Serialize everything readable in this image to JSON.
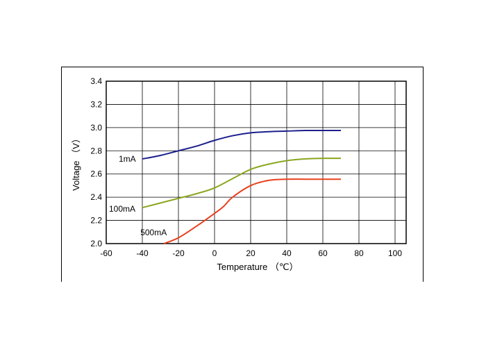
{
  "chart_data": {
    "type": "line",
    "title": "",
    "xlabel": "Temperature （℃）",
    "ylabel": "Voltage （V）",
    "xlim": [
      -60,
      100
    ],
    "ylim": [
      2.0,
      3.4
    ],
    "x_ticks": [
      "-60",
      "-40",
      "-20",
      "0",
      "20",
      "40",
      "60",
      "80",
      "100"
    ],
    "y_ticks": [
      "2.0",
      "2.2",
      "2.4",
      "2.6",
      "2.8",
      "3.0",
      "3.2",
      "3.4"
    ],
    "grid": true,
    "series": [
      {
        "name": "1mA",
        "color": "#1a1f8c",
        "points": [
          [
            -40,
            2.73
          ],
          [
            -30,
            2.76
          ],
          [
            -20,
            2.8
          ],
          [
            -10,
            2.84
          ],
          [
            0,
            2.89
          ],
          [
            10,
            2.93
          ],
          [
            20,
            2.955
          ],
          [
            30,
            2.965
          ],
          [
            40,
            2.97
          ],
          [
            50,
            2.975
          ],
          [
            60,
            2.975
          ],
          [
            70,
            2.975
          ]
        ]
      },
      {
        "name": "100mA",
        "color": "#8aa61e",
        "points": [
          [
            -40,
            2.31
          ],
          [
            -30,
            2.35
          ],
          [
            -20,
            2.39
          ],
          [
            -10,
            2.43
          ],
          [
            0,
            2.48
          ],
          [
            10,
            2.56
          ],
          [
            20,
            2.64
          ],
          [
            30,
            2.685
          ],
          [
            40,
            2.715
          ],
          [
            50,
            2.73
          ],
          [
            60,
            2.735
          ],
          [
            70,
            2.735
          ]
        ]
      },
      {
        "name": "500mA",
        "color": "#e8401c",
        "points": [
          [
            -28,
            2.0
          ],
          [
            -20,
            2.05
          ],
          [
            -10,
            2.15
          ],
          [
            0,
            2.26
          ],
          [
            5,
            2.32
          ],
          [
            10,
            2.4
          ],
          [
            20,
            2.5
          ],
          [
            30,
            2.545
          ],
          [
            40,
            2.555
          ],
          [
            50,
            2.555
          ],
          [
            60,
            2.555
          ],
          [
            70,
            2.555
          ]
        ]
      }
    ]
  }
}
